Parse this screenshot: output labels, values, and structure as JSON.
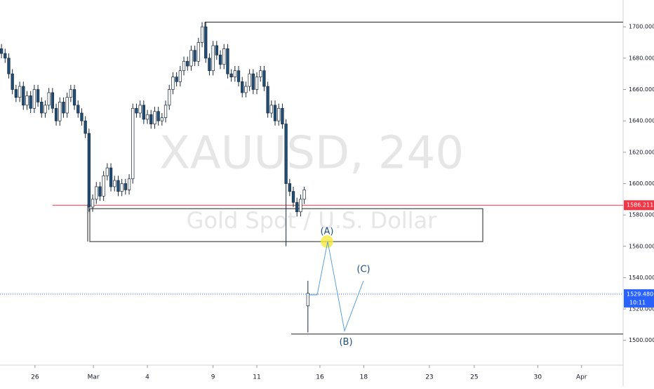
{
  "chart_data": {
    "type": "candlestick",
    "watermark": "XAUUSD, 240",
    "watermark_sub": "Gold Spot / U.S. Dollar",
    "up_color": "#ffffff",
    "down_color": "#1f4e79",
    "outline_color": "#1b2a3a",
    "open": [
      1686,
      1683,
      1680,
      1670,
      1660,
      1655,
      1662,
      1650,
      1656,
      1648,
      1660,
      1652,
      1645,
      1650,
      1658,
      1648,
      1640,
      1652,
      1645,
      1655,
      1660,
      1650,
      1645,
      1640,
      1632,
      1585,
      1590,
      1598,
      1592,
      1605,
      1610,
      1598,
      1602,
      1595,
      1600,
      1596,
      1603,
      1648,
      1645,
      1650,
      1641,
      1644,
      1638,
      1646,
      1640,
      1642,
      1650,
      1660,
      1668,
      1665,
      1672,
      1678,
      1675,
      1685,
      1678,
      1690,
      1700,
      1680,
      1672,
      1688,
      1682,
      1676,
      1686,
      1670,
      1668,
      1672,
      1665,
      1658,
      1662,
      1670,
      1660,
      1668,
      1672,
      1662,
      1645,
      1650,
      1640,
      1648,
      1638,
      1600,
      1595,
      1588,
      1582,
      1590,
      1522
    ],
    "high": [
      1689,
      1686,
      1683,
      1673,
      1663,
      1665,
      1665,
      1659,
      1659,
      1663,
      1663,
      1655,
      1653,
      1661,
      1661,
      1651,
      1655,
      1655,
      1658,
      1663,
      1663,
      1653,
      1648,
      1643,
      1635,
      1593,
      1601,
      1601,
      1608,
      1613,
      1613,
      1605,
      1605,
      1603,
      1603,
      1606,
      1651,
      1651,
      1653,
      1653,
      1647,
      1647,
      1649,
      1649,
      1645,
      1653,
      1663,
      1671,
      1671,
      1675,
      1681,
      1681,
      1688,
      1688,
      1693,
      1703,
      1703,
      1683,
      1691,
      1691,
      1685,
      1689,
      1689,
      1673,
      1675,
      1675,
      1668,
      1665,
      1673,
      1673,
      1671,
      1675,
      1675,
      1665,
      1653,
      1653,
      1651,
      1651,
      1641,
      1603,
      1598,
      1591,
      1593,
      1598,
      1538
    ],
    "low": [
      1680,
      1677,
      1667,
      1657,
      1652,
      1652,
      1647,
      1647,
      1645,
      1645,
      1649,
      1642,
      1642,
      1647,
      1645,
      1637,
      1637,
      1642,
      1642,
      1652,
      1647,
      1642,
      1637,
      1629,
      1582,
      1582,
      1587,
      1589,
      1589,
      1602,
      1595,
      1595,
      1592,
      1592,
      1593,
      1593,
      1600,
      1642,
      1642,
      1638,
      1638,
      1635,
      1635,
      1637,
      1637,
      1639,
      1647,
      1657,
      1662,
      1662,
      1669,
      1672,
      1672,
      1675,
      1675,
      1687,
      1677,
      1669,
      1669,
      1679,
      1673,
      1673,
      1667,
      1665,
      1665,
      1662,
      1655,
      1655,
      1659,
      1657,
      1657,
      1665,
      1659,
      1642,
      1642,
      1637,
      1637,
      1635,
      1560,
      1592,
      1585,
      1579,
      1579,
      1587,
      1505
    ],
    "close": [
      1683,
      1680,
      1670,
      1660,
      1655,
      1662,
      1650,
      1656,
      1648,
      1660,
      1652,
      1645,
      1650,
      1658,
      1648,
      1640,
      1652,
      1645,
      1655,
      1660,
      1650,
      1645,
      1640,
      1632,
      1585,
      1590,
      1598,
      1592,
      1605,
      1610,
      1598,
      1602,
      1595,
      1600,
      1596,
      1603,
      1648,
      1645,
      1650,
      1641,
      1644,
      1638,
      1646,
      1640,
      1642,
      1650,
      1660,
      1668,
      1665,
      1672,
      1678,
      1675,
      1685,
      1678,
      1690,
      1700,
      1680,
      1672,
      1688,
      1682,
      1676,
      1686,
      1670,
      1668,
      1672,
      1665,
      1658,
      1662,
      1670,
      1660,
      1668,
      1672,
      1662,
      1645,
      1650,
      1640,
      1648,
      1638,
      1600,
      1595,
      1588,
      1582,
      1590,
      1596,
      1530
    ],
    "xlim": [
      -0.4,
      170.4
    ],
    "xticks": [
      {
        "value": 9.2,
        "label": "26"
      },
      {
        "value": 25.2,
        "label": "Mar"
      },
      {
        "value": 40,
        "label": "4"
      },
      {
        "value": 58,
        "label": "9"
      },
      {
        "value": 70,
        "label": "11"
      },
      {
        "value": 87.3,
        "label": "16"
      },
      {
        "value": 99.3,
        "label": "18"
      },
      {
        "value": 117.3,
        "label": "23"
      },
      {
        "value": 129.6,
        "label": "25"
      },
      {
        "value": 147,
        "label": "30"
      },
      {
        "value": 159,
        "label": "Apr"
      }
    ],
    "ylim": [
      1484.2,
      1717.1
    ],
    "yticks": [
      {
        "value": 1500,
        "label": "1500.000"
      },
      {
        "value": 1520,
        "label": "1520.000"
      },
      {
        "value": 1540,
        "label": "1540.000"
      },
      {
        "value": 1560,
        "label": "1560.000"
      },
      {
        "value": 1580,
        "label": "1580.000"
      },
      {
        "value": 1600,
        "label": "1600.000"
      },
      {
        "value": 1620,
        "label": "1620.000"
      },
      {
        "value": 1640,
        "label": "1640.000"
      },
      {
        "value": 1660,
        "label": "1660.000"
      },
      {
        "value": 1680,
        "label": "1680.000"
      },
      {
        "value": 1700,
        "label": "1700.000"
      }
    ],
    "resistance": {
      "value": 1586.211,
      "label": "1586.211",
      "color": "#f23645"
    },
    "last_price": {
      "value": 1529.48,
      "label": "1529.480",
      "color": "#2962ff"
    },
    "countdown": "10:11",
    "zone": [
      1563,
      1584
    ],
    "top_line": 1703,
    "bottom_line": 1504,
    "wave": {
      "labels": [
        "(A)",
        "(B)",
        "(C)"
      ],
      "prices": [
        1529,
        1563,
        1506,
        1538
      ],
      "color": "#5aa0d8"
    }
  }
}
